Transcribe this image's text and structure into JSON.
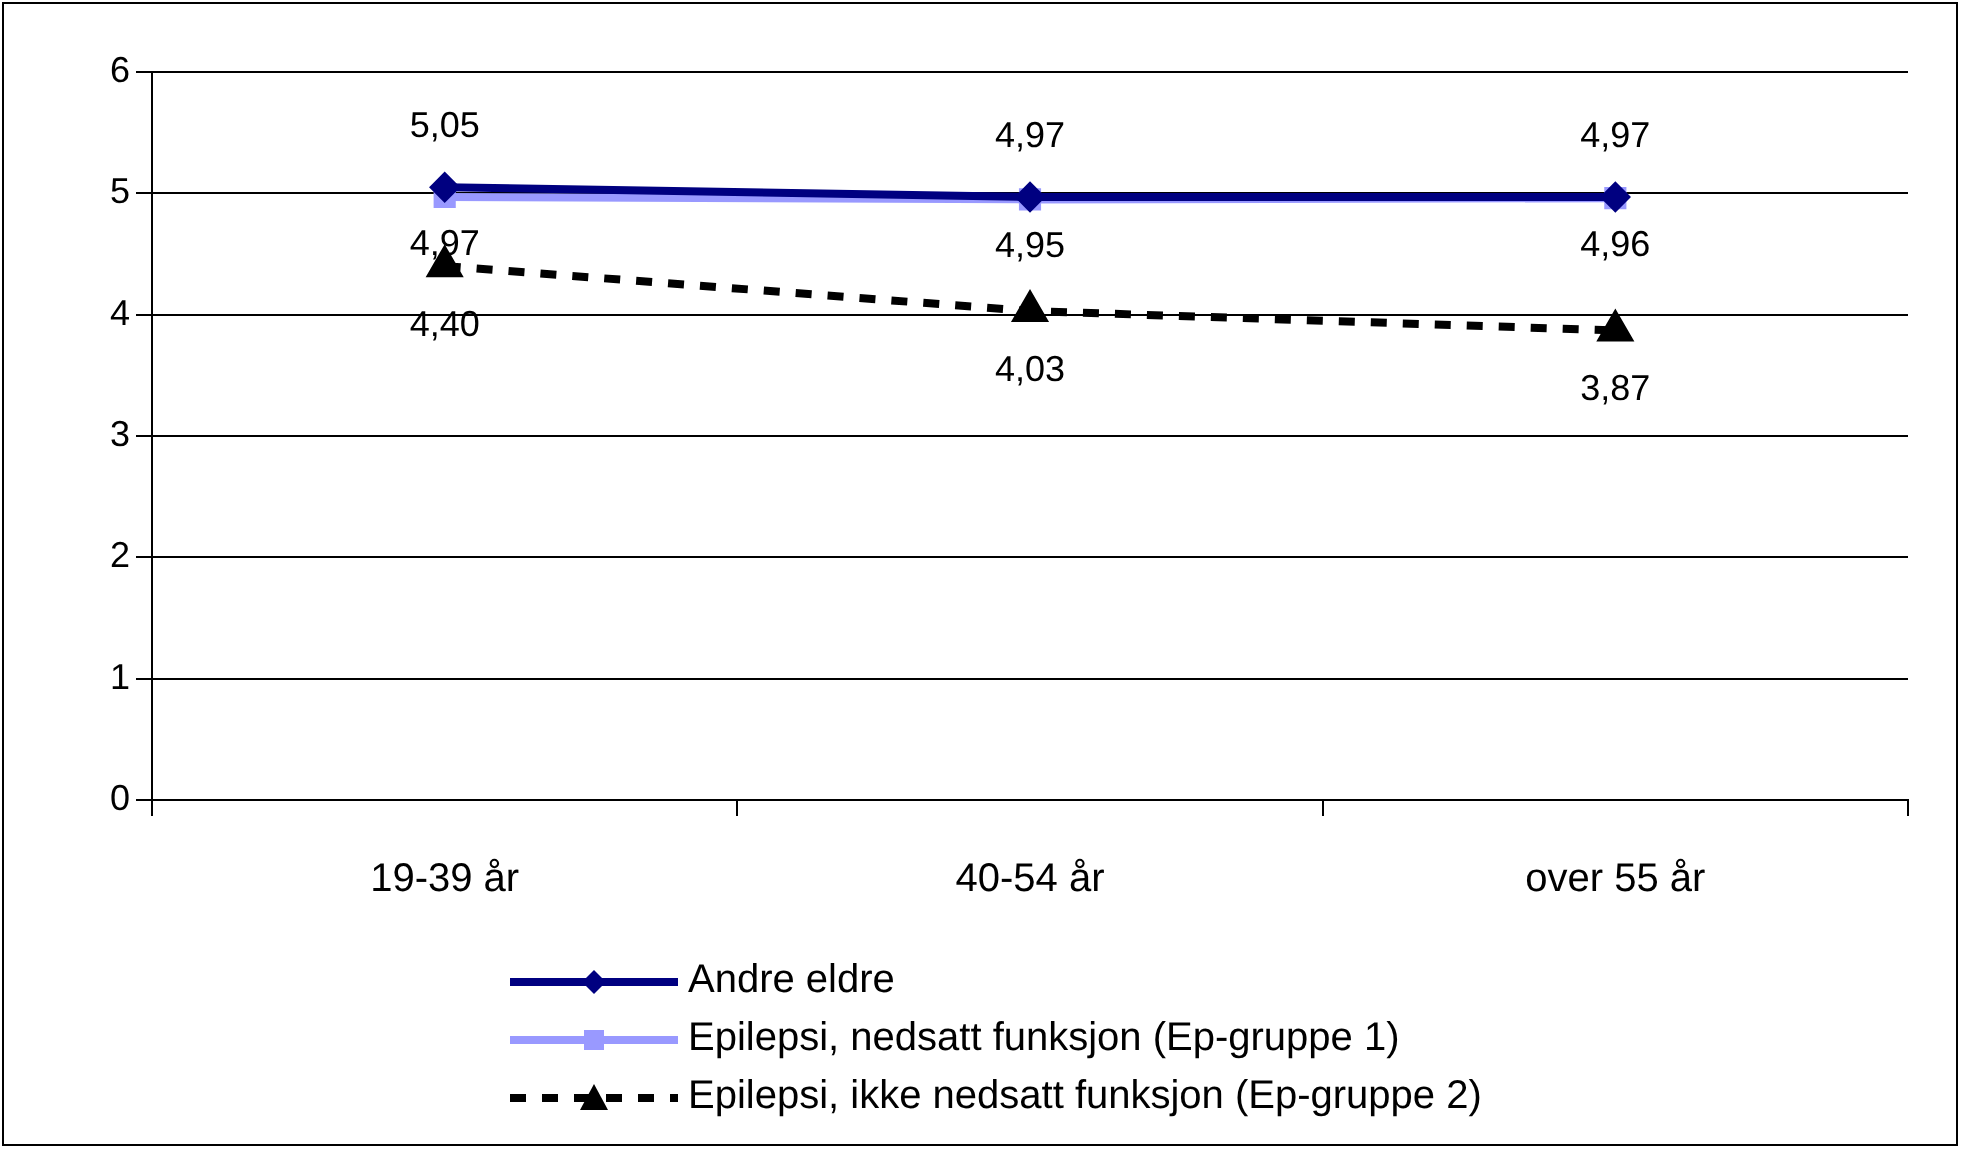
{
  "chart_data": {
    "type": "line",
    "categories": [
      "19-39 år",
      "40-54 år",
      "over 55 år"
    ],
    "ylim": [
      0,
      6
    ],
    "yticks": [
      0,
      1,
      2,
      3,
      4,
      5,
      6
    ],
    "grid": "y",
    "legend": "bottom",
    "series": [
      {
        "name": "Andre eldre",
        "color": "#000080",
        "values": [
          5.05,
          4.97,
          4.97
        ],
        "value_labels": [
          "5,05",
          "4,97",
          "4,97"
        ],
        "marker": "diamond",
        "line_style": "solid"
      },
      {
        "name": "Epilepsi, nedsatt funksjon (Ep-gruppe 1)",
        "color": "#9999ff",
        "values": [
          4.97,
          4.95,
          4.96
        ],
        "value_labels": [
          "4,97",
          "4,95",
          "4,96"
        ],
        "marker": "square",
        "line_style": "solid"
      },
      {
        "name": "Epilepsi, ikke nedsatt funksjon (Ep-gruppe 2)",
        "color": "#000000",
        "values": [
          4.4,
          4.03,
          3.87
        ],
        "value_labels": [
          "4,40",
          "4,03",
          "3,87"
        ],
        "marker": "triangle",
        "line_style": "dashed"
      }
    ]
  }
}
